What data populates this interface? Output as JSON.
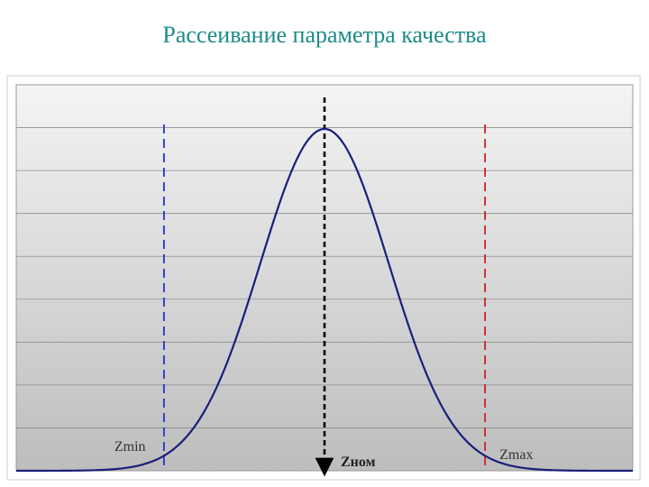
{
  "title": "Рассеивание параметра качества",
  "chart_data": {
    "type": "line",
    "title": "Рассеивание параметра качества",
    "xlabel": "",
    "ylabel": "",
    "grid": true,
    "distribution": {
      "kind": "normal",
      "mean": 0,
      "sd": 1
    },
    "x_range": [
      -4.8,
      4.8
    ],
    "series": [
      {
        "x": [
          -4.8,
          -4.5,
          -4.0,
          -3.5,
          -3.0,
          -2.5,
          -2.25,
          -2.0,
          -1.75,
          -1.5,
          -1.25,
          -1.0,
          -0.75,
          -0.5,
          -0.25,
          0.0,
          0.25,
          0.5,
          0.75,
          1.0,
          1.25,
          1.5,
          1.75,
          2.0,
          2.25,
          2.5,
          3.0,
          3.5,
          4.0,
          4.5,
          4.8
        ],
        "y": [
          0.0,
          0.0,
          0.0001,
          0.0009,
          0.0044,
          0.0175,
          0.0317,
          0.054,
          0.0863,
          0.1295,
          0.1826,
          0.242,
          0.3011,
          0.3521,
          0.3867,
          0.3989,
          0.3867,
          0.3521,
          0.3011,
          0.242,
          0.1826,
          0.1295,
          0.0863,
          0.054,
          0.0317,
          0.0175,
          0.0044,
          0.0009,
          0.0001,
          0.0,
          0.0
        ]
      }
    ],
    "markers": [
      {
        "label": "Zmin",
        "x": -2.5,
        "color": "#2233cc"
      },
      {
        "label": "Zном",
        "x": 0.0,
        "color": "#000000"
      },
      {
        "label": "Zmax",
        "x": 2.5,
        "color": "#cc2222"
      }
    ]
  }
}
